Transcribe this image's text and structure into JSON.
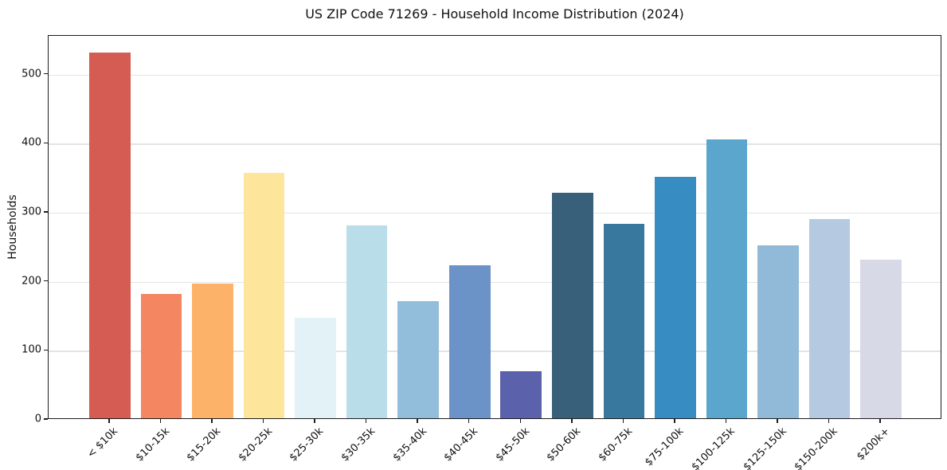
{
  "chart_data": {
    "type": "bar",
    "title": "US ZIP Code 71269 - Household Income Distribution (2024)",
    "xlabel": "",
    "ylabel": "Households",
    "categories": [
      "< $10k",
      "$10-15k",
      "$15-20k",
      "$20-25k",
      "$25-30k",
      "$30-35k",
      "$35-40k",
      "$40-45k",
      "$45-50k",
      "$50-60k",
      "$60-75k",
      "$75-100k",
      "$100-125k",
      "$125-150k",
      "$150-200k",
      "$200k+"
    ],
    "values": [
      530,
      180,
      195,
      355,
      145,
      279,
      170,
      221,
      68,
      327,
      281,
      350,
      404,
      250,
      288,
      229
    ],
    "bar_colors": [
      "#d55c52",
      "#f48662",
      "#fcb369",
      "#fde59b",
      "#e2f2f7",
      "#b9dde9",
      "#92bedb",
      "#6c93c7",
      "#5c61ab",
      "#39607a",
      "#38789f",
      "#378dc1",
      "#5ba6cc",
      "#91b9d8",
      "#b5c9e1",
      "#d7d9e7"
    ],
    "ylim": [
      0,
      556
    ],
    "yticks": [
      0,
      100,
      200,
      300,
      400,
      500
    ],
    "grid": "horizontal-only",
    "legend": "none",
    "colors": {
      "background": "#ffffff",
      "gridline": "#e4e4e4",
      "spine": "#1c1c1c",
      "text": "#111111"
    }
  }
}
